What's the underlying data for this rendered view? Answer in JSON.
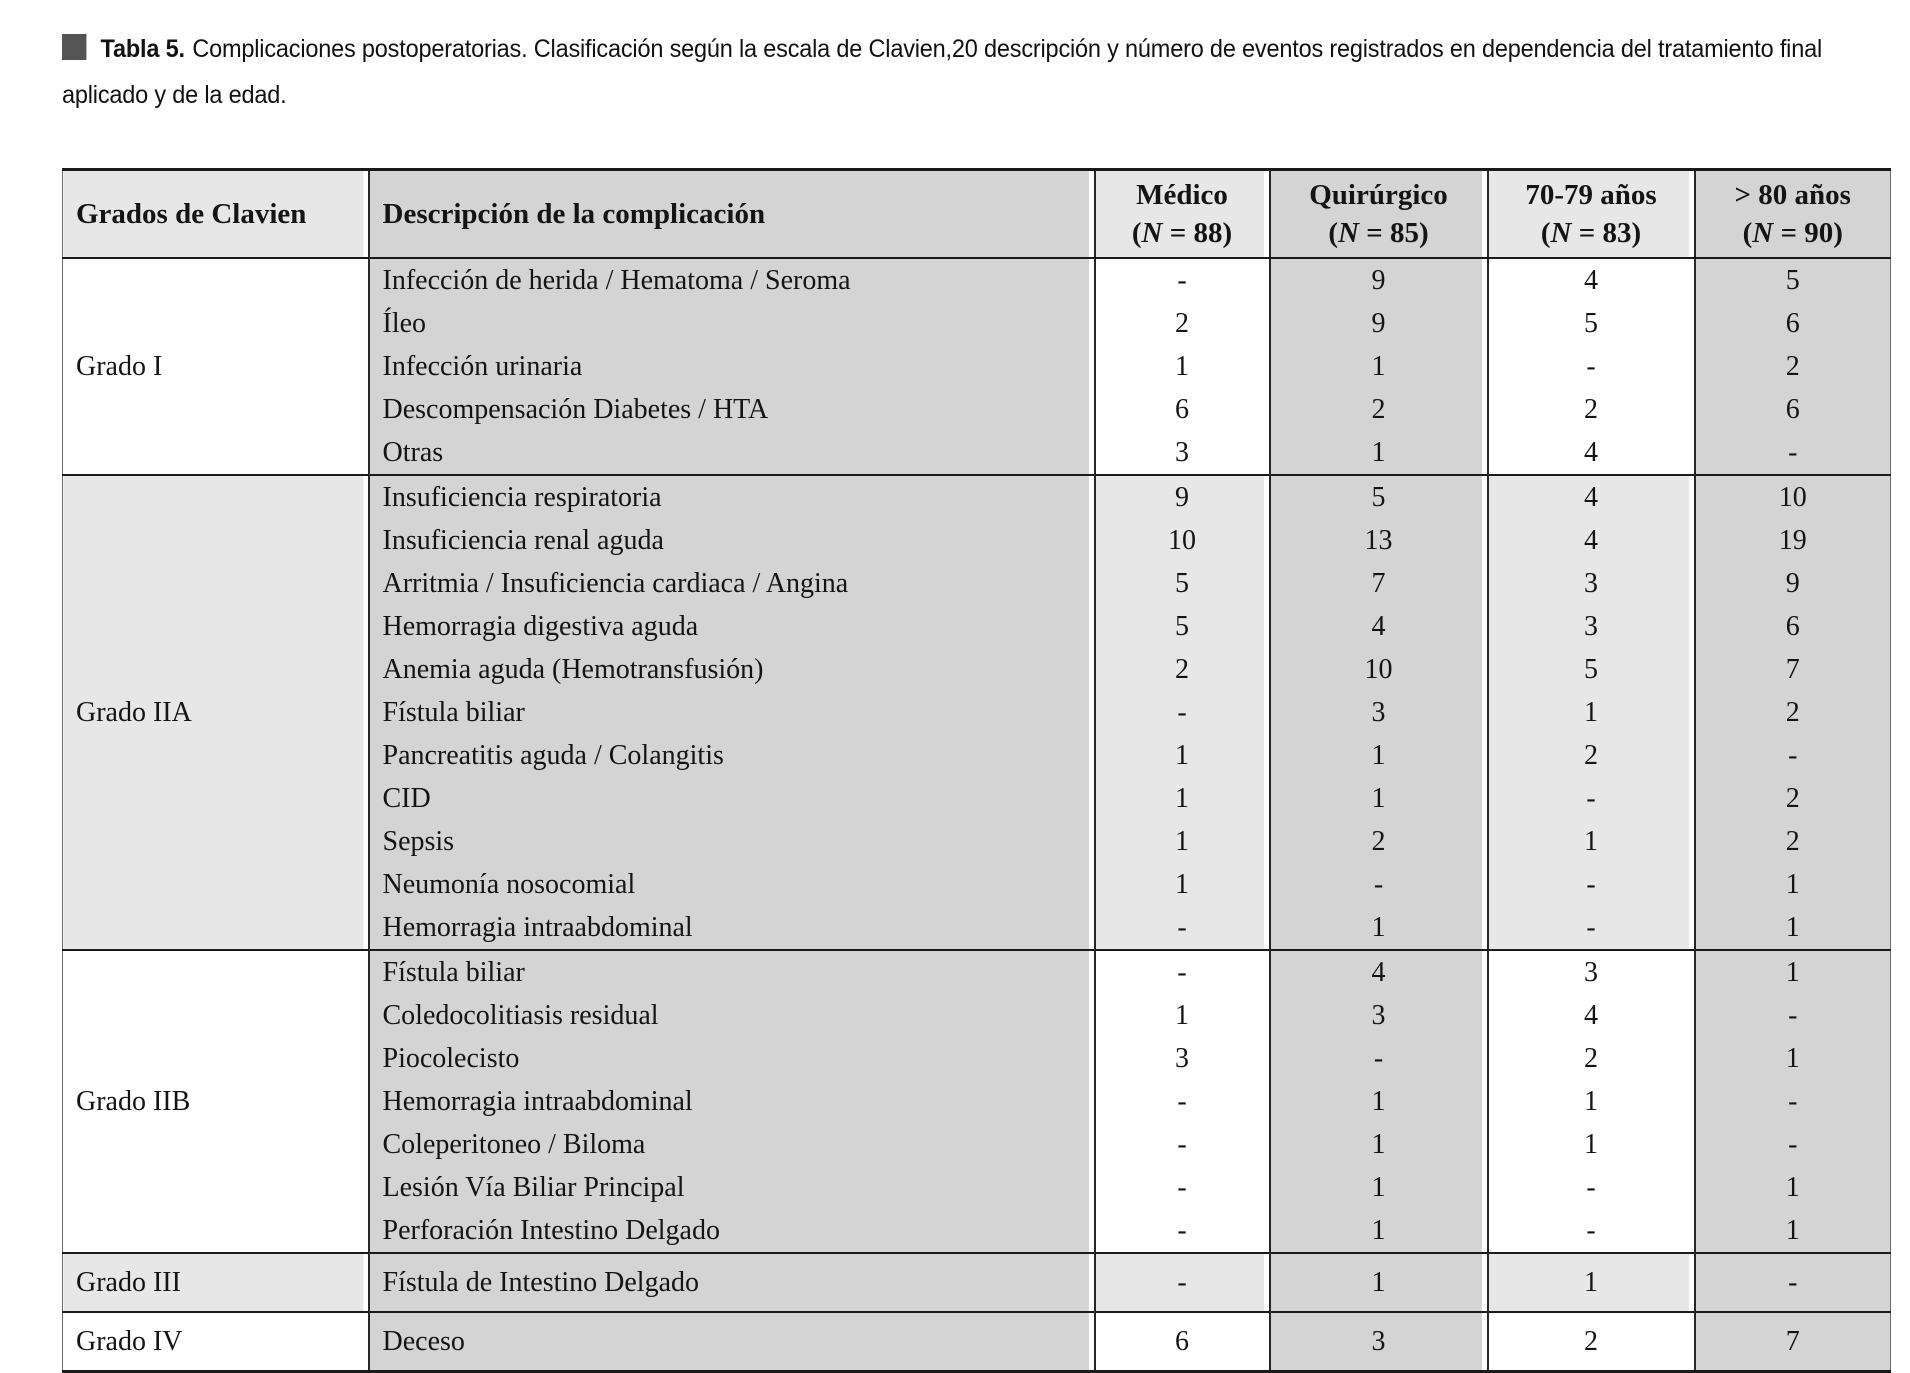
{
  "caption": {
    "label": "Tabla 5.",
    "text": "Complicaciones postoperatorias. Clasificación según la escala de Clavien,20 descripción y número de eventos registrados en dependencia del tratamiento final aplicado y de la edad."
  },
  "table": {
    "columns": [
      {
        "id": "grados",
        "label": "Grados de Clavien"
      },
      {
        "id": "descripcion",
        "label": "Descripción de la complicación"
      },
      {
        "id": "medico",
        "label": "Médico",
        "n": "(N = 88)"
      },
      {
        "id": "quirurgico",
        "label": "Quirúrgico",
        "n": "(N = 85)"
      },
      {
        "id": "70-79",
        "label": "70-79 años",
        "n": "(N = 83)"
      },
      {
        "id": "mayor-80",
        "label": "> 80 años",
        "n": "(N = 90)"
      }
    ],
    "groups": [
      {
        "grade": "Grado I",
        "shade": "plain",
        "rows": [
          {
            "desc": "Infección de herida / Hematoma / Seroma",
            "values": [
              "-",
              "9",
              "4",
              "5"
            ]
          },
          {
            "desc": "Íleo",
            "values": [
              "2",
              "9",
              "5",
              "6"
            ]
          },
          {
            "desc": "Infección urinaria",
            "values": [
              "1",
              "1",
              "-",
              "2"
            ]
          },
          {
            "desc": "Descompensación Diabetes / HTA",
            "values": [
              "6",
              "2",
              "2",
              "6"
            ]
          },
          {
            "desc": "Otras",
            "values": [
              "3",
              "1",
              "4",
              "-"
            ]
          }
        ]
      },
      {
        "grade": "Grado IIA",
        "shade": "shaded",
        "rows": [
          {
            "desc": "Insuficiencia respiratoria",
            "values": [
              "9",
              "5",
              "4",
              "10"
            ]
          },
          {
            "desc": "Insuficiencia renal aguda",
            "values": [
              "10",
              "13",
              "4",
              "19"
            ]
          },
          {
            "desc": "Arritmia / Insuficiencia cardiaca / Angina",
            "values": [
              "5",
              "7",
              "3",
              "9"
            ]
          },
          {
            "desc": "Hemorragia digestiva aguda",
            "values": [
              "5",
              "4",
              "3",
              "6"
            ]
          },
          {
            "desc": "Anemia aguda (Hemotransfusión)",
            "values": [
              "2",
              "10",
              "5",
              "7"
            ]
          },
          {
            "desc": "Fístula biliar",
            "values": [
              "-",
              "3",
              "1",
              "2"
            ]
          },
          {
            "desc": "Pancreatitis aguda / Colangitis",
            "values": [
              "1",
              "1",
              "2",
              "-"
            ]
          },
          {
            "desc": "CID",
            "values": [
              "1",
              "1",
              "-",
              "2"
            ]
          },
          {
            "desc": "Sepsis",
            "values": [
              "1",
              "2",
              "1",
              "2"
            ]
          },
          {
            "desc": "Neumonía nosocomial",
            "values": [
              "1",
              "-",
              "-",
              "1"
            ]
          },
          {
            "desc": "Hemorragia intraabdominal",
            "values": [
              "-",
              "1",
              "-",
              "1"
            ]
          }
        ]
      },
      {
        "grade": "Grado IIB",
        "shade": "plain",
        "rows": [
          {
            "desc": "Fístula biliar",
            "values": [
              "-",
              "4",
              "3",
              "1"
            ]
          },
          {
            "desc": "Coledocolitiasis residual",
            "values": [
              "1",
              "3",
              "4",
              "-"
            ]
          },
          {
            "desc": "Piocolecisto",
            "values": [
              "3",
              "-",
              "2",
              "1"
            ]
          },
          {
            "desc": "Hemorragia intraabdominal",
            "values": [
              "-",
              "1",
              "1",
              "-"
            ]
          },
          {
            "desc": "Coleperitoneo / Biloma",
            "values": [
              "-",
              "1",
              "1",
              "-"
            ]
          },
          {
            "desc": "Lesión Vía Biliar Principal",
            "values": [
              "-",
              "1",
              "-",
              "1"
            ]
          },
          {
            "desc": "Perforación Intestino Delgado",
            "values": [
              "-",
              "1",
              "-",
              "1"
            ]
          }
        ]
      },
      {
        "grade": "Grado III",
        "shade": "shaded",
        "rows": [
          {
            "desc": "Fístula de Intestino Delgado",
            "values": [
              "-",
              "1",
              "1",
              "-"
            ]
          }
        ]
      },
      {
        "grade": "Grado IV",
        "shade": "plain",
        "rows": [
          {
            "desc": "Deceso",
            "values": [
              "6",
              "3",
              "2",
              "7"
            ]
          }
        ]
      }
    ]
  },
  "colors": {
    "caption_square": "#555555",
    "shaded_band": "#e7e7e7",
    "plain_band": "#ffffff",
    "dark_column": "#d4d4d4",
    "rule": "#1a1a1a"
  }
}
